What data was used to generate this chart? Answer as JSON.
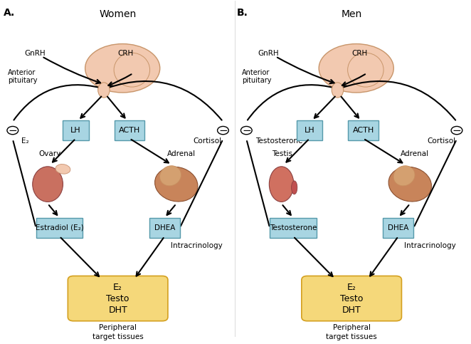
{
  "figsize": [
    6.62,
    4.83
  ],
  "dpi": 100,
  "bg_color": "#ffffff",
  "panel_A": {
    "label": "A.",
    "title": "Women",
    "gnrh_label": "GnRH",
    "crh_label": "CRH",
    "ant_pit_label": "Anterior\npituitary",
    "lh_label": "LH",
    "acth_label": "ACTH",
    "left_inhibit_label": "E₂",
    "right_inhibit_label": "Cortisol",
    "left_organ_label": "Ovary",
    "right_organ_label": "Adrenal",
    "left_box_label": "Estradiol (E₂)",
    "right_box_label": "DHEA",
    "intracrinology_label": "Intracrinology",
    "bottom_box_lines": [
      "E₂",
      "Testo",
      "DHT"
    ],
    "bottom_label": "Peripheral\ntarget tissues",
    "is_women": true
  },
  "panel_B": {
    "label": "B.",
    "title": "Men",
    "gnrh_label": "GnRH",
    "crh_label": "CRH",
    "ant_pit_label": "Anterior\npituitary",
    "lh_label": "LH",
    "acth_label": "ACTH",
    "left_inhibit_label": "Testosterone",
    "right_inhibit_label": "Cortisol",
    "left_organ_label": "Testis",
    "right_organ_label": "Adrenal",
    "left_box_label": "Testosterone",
    "right_box_label": "DHEA",
    "intracrinology_label": "Intracrinology",
    "bottom_box_lines": [
      "E₂",
      "Testo",
      "DHT"
    ],
    "bottom_label": "Peripheral\ntarget tissues",
    "is_women": false
  },
  "colors": {
    "blue_box_bg": "#A8D5E2",
    "blue_box_edge": "#5599AA",
    "yellow_box": "#F5D87A",
    "yellow_box_edge": "#D4A020",
    "arrow": "#000000",
    "brain_fill": "#F2C9B0",
    "brain_outline": "#C8956A",
    "ovary_fill": "#C97060",
    "adrenal_fill": "#C8845A",
    "testis_fill": "#D07060",
    "adrenal2_fill": "#D4A070"
  }
}
